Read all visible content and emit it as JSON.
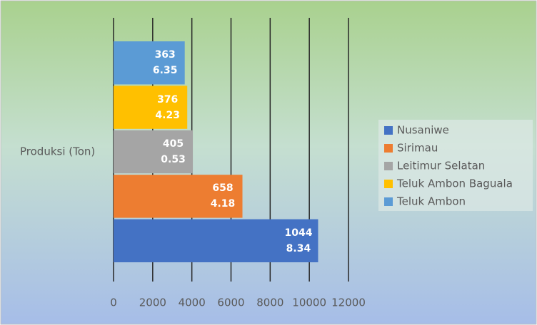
{
  "chart_data": {
    "type": "hbar",
    "categories": [
      "Produksi (Ton)"
    ],
    "series": [
      {
        "name": "Nusaniwe",
        "color": "#4472c4",
        "values": [
          10448.34
        ]
      },
      {
        "name": "Sirimau",
        "color": "#ed7d31",
        "values": [
          6584.18
        ]
      },
      {
        "name": "Leitimur Selatan",
        "color": "#a5a5a5",
        "values": [
          4050.53
        ]
      },
      {
        "name": "Teluk Ambon Baguala",
        "color": "#ffc000",
        "values": [
          3764.23
        ]
      },
      {
        "name": "Teluk Ambon",
        "color": "#5b9bd5",
        "values": [
          3636.35
        ]
      }
    ],
    "xlim": [
      0,
      12000
    ],
    "xticks": [
      0,
      2000,
      4000,
      6000,
      8000,
      10000,
      12000
    ],
    "grid": true,
    "legend": "right"
  }
}
